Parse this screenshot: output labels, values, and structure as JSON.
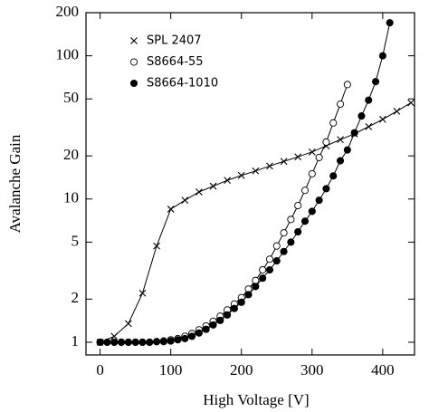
{
  "chart_data": {
    "type": "line",
    "x_label": "High Voltage [V]",
    "y_label": "Avalanche Gain",
    "yscale": "log",
    "xlim": [
      -20,
      445
    ],
    "ylim": [
      0.815,
      200
    ],
    "xticks": [
      0,
      100,
      200,
      300,
      400
    ],
    "yticks": [
      1,
      2,
      5,
      10,
      20,
      50,
      100,
      200
    ],
    "legend": "upper left",
    "series": [
      {
        "name": "SPL 2407",
        "marker": "x",
        "color": "#000000",
        "x": [
          0,
          20,
          40,
          60,
          80,
          100,
          120,
          140,
          160,
          180,
          200,
          220,
          240,
          260,
          280,
          300,
          320,
          340,
          360,
          380,
          400,
          420,
          440
        ],
        "values": [
          1.0,
          1.1,
          1.35,
          2.2,
          4.7,
          8.5,
          9.8,
          11.2,
          12.3,
          13.5,
          14.6,
          15.7,
          17,
          18.3,
          19.7,
          21.3,
          23.5,
          26,
          28.5,
          32,
          36,
          41,
          47
        ]
      },
      {
        "name": "S8664-55",
        "marker": "open-circle",
        "color": "#000000",
        "x": [
          0,
          10,
          20,
          30,
          40,
          50,
          60,
          70,
          80,
          90,
          100,
          110,
          120,
          130,
          140,
          150,
          160,
          170,
          180,
          190,
          200,
          210,
          220,
          230,
          240,
          250,
          260,
          270,
          280,
          290,
          300,
          310,
          320,
          330,
          340,
          350
        ],
        "values": [
          1.0,
          1.0,
          1.0,
          1.0,
          1.0,
          1.0,
          1.0,
          1.0,
          1.01,
          1.02,
          1.04,
          1.06,
          1.1,
          1.15,
          1.22,
          1.3,
          1.4,
          1.52,
          1.68,
          1.85,
          2.05,
          2.35,
          2.7,
          3.2,
          3.8,
          4.7,
          5.8,
          7.2,
          9,
          11.5,
          15,
          19.5,
          25,
          34,
          46,
          63
        ]
      },
      {
        "name": "S8664-1010",
        "marker": "filled-circle",
        "color": "#000000",
        "x": [
          0,
          10,
          20,
          30,
          40,
          50,
          60,
          70,
          80,
          90,
          100,
          110,
          120,
          130,
          140,
          150,
          160,
          170,
          180,
          190,
          200,
          210,
          220,
          230,
          240,
          250,
          260,
          270,
          280,
          290,
          300,
          310,
          320,
          330,
          340,
          350,
          360,
          370,
          380,
          390,
          400,
          410
        ],
        "values": [
          1.0,
          1.0,
          1.0,
          1.0,
          1.0,
          1.0,
          1.0,
          1.0,
          1.01,
          1.01,
          1.02,
          1.04,
          1.06,
          1.1,
          1.16,
          1.23,
          1.32,
          1.42,
          1.55,
          1.72,
          1.9,
          2.15,
          2.45,
          2.8,
          3.2,
          3.7,
          4.3,
          5.0,
          5.9,
          7,
          8.2,
          9.8,
          11.8,
          14.5,
          18.5,
          22,
          29,
          38,
          49,
          66,
          100,
          170
        ]
      }
    ]
  }
}
